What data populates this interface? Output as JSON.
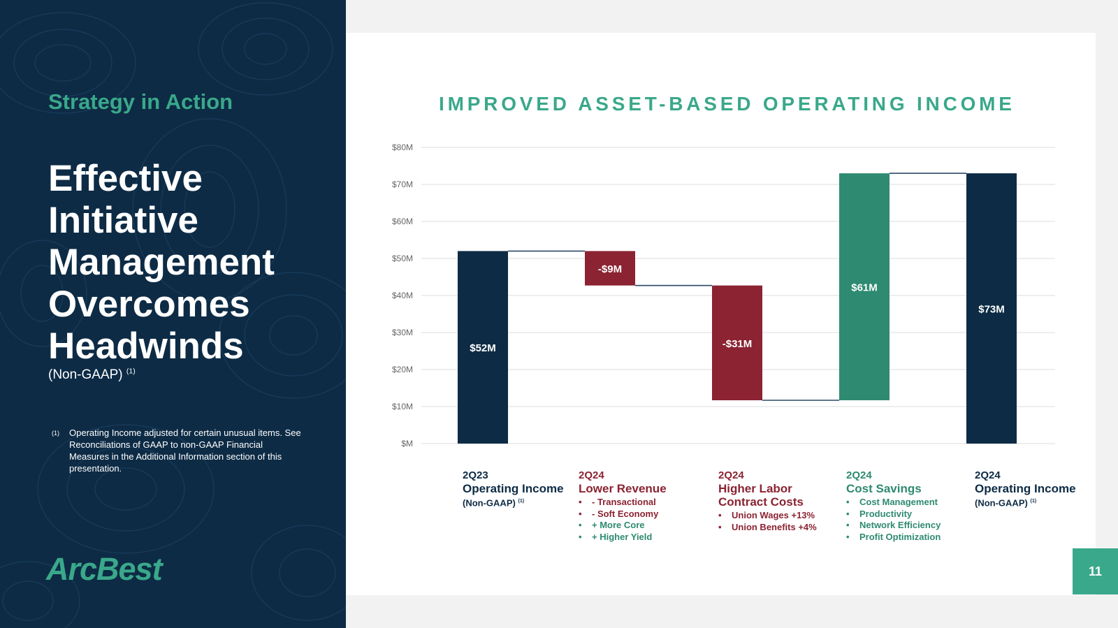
{
  "left": {
    "subtitle": "Strategy in Action",
    "headline": [
      "Effective",
      "Initiative",
      "Management",
      "Overcomes",
      "Headwinds"
    ],
    "non_gaap": "(Non-GAAP)",
    "note_ref": "(1)",
    "footnote_marker": "(1)",
    "footnote_text": "Operating Income adjusted for certain unusual items. See Reconciliations of GAAP to non-GAAP Financial Measures in the Additional Information section of this presentation.",
    "logo": "ArcBest"
  },
  "page_number": "11",
  "colors": {
    "navy": "#0d2b45",
    "red": "#8b2332",
    "green": "#2e8a70",
    "accent": "#3aa88a"
  },
  "chart_data": {
    "type": "bar",
    "subtype": "waterfall",
    "title": "IMPROVED ASSET-BASED OPERATING INCOME",
    "ylim": [
      0,
      80
    ],
    "yticks": [
      {
        "value": 80,
        "label": "$80M"
      },
      {
        "value": 70,
        "label": "$70M"
      },
      {
        "value": 60,
        "label": "$60M"
      },
      {
        "value": 50,
        "label": "$50M"
      },
      {
        "value": 40,
        "label": "$40M"
      },
      {
        "value": 30,
        "label": "$30M"
      },
      {
        "value": 20,
        "label": "$20M"
      },
      {
        "value": 10,
        "label": "$10M"
      },
      {
        "value": 0,
        "label": "$M"
      }
    ],
    "bars": [
      {
        "start": 0,
        "end": 52,
        "label": "$52M",
        "color": "#0d2b45"
      },
      {
        "start": 52,
        "end": 42.7,
        "label": "-$9M",
        "color": "#8b2332"
      },
      {
        "start": 42.7,
        "end": 11.7,
        "label": "-$31M",
        "color": "#8b2332"
      },
      {
        "start": 11.7,
        "end": 73,
        "label": "$61M",
        "color": "#2e8a70"
      },
      {
        "start": 0,
        "end": 73,
        "label": "$73M",
        "color": "#0d2b45"
      }
    ],
    "categories": [
      {
        "year": "2Q23",
        "name": "Operating Income",
        "name2": "",
        "non_gaap": "(Non-GAAP)",
        "ref": "(1)",
        "bullets": []
      },
      {
        "year": "2Q24",
        "name": "Lower Revenue",
        "name2": "",
        "bullets": [
          {
            "text": "- Transactional",
            "tone": "red"
          },
          {
            "text": "- Soft Economy",
            "tone": "red"
          },
          {
            "text": "+ More Core",
            "tone": "green"
          },
          {
            "text": "+ Higher Yield",
            "tone": "green"
          }
        ]
      },
      {
        "year": "2Q24",
        "name": "Higher Labor",
        "name2": "Contract Costs",
        "bullets": [
          {
            "text": "Union Wages +13%",
            "tone": "red"
          },
          {
            "text": "Union Benefits +4%",
            "tone": "red"
          }
        ]
      },
      {
        "year": "2Q24",
        "name": "Cost Savings",
        "name2": "",
        "bullets": [
          {
            "text": "Cost Management",
            "tone": "green"
          },
          {
            "text": "Productivity",
            "tone": "green"
          },
          {
            "text": "Network Efficiency",
            "tone": "green"
          },
          {
            "text": "Profit Optimization",
            "tone": "green"
          }
        ]
      },
      {
        "year": "2Q24",
        "name": "Operating Income",
        "name2": "",
        "non_gaap": "(Non-GAAP)",
        "ref": "(1)",
        "bullets": []
      }
    ]
  }
}
